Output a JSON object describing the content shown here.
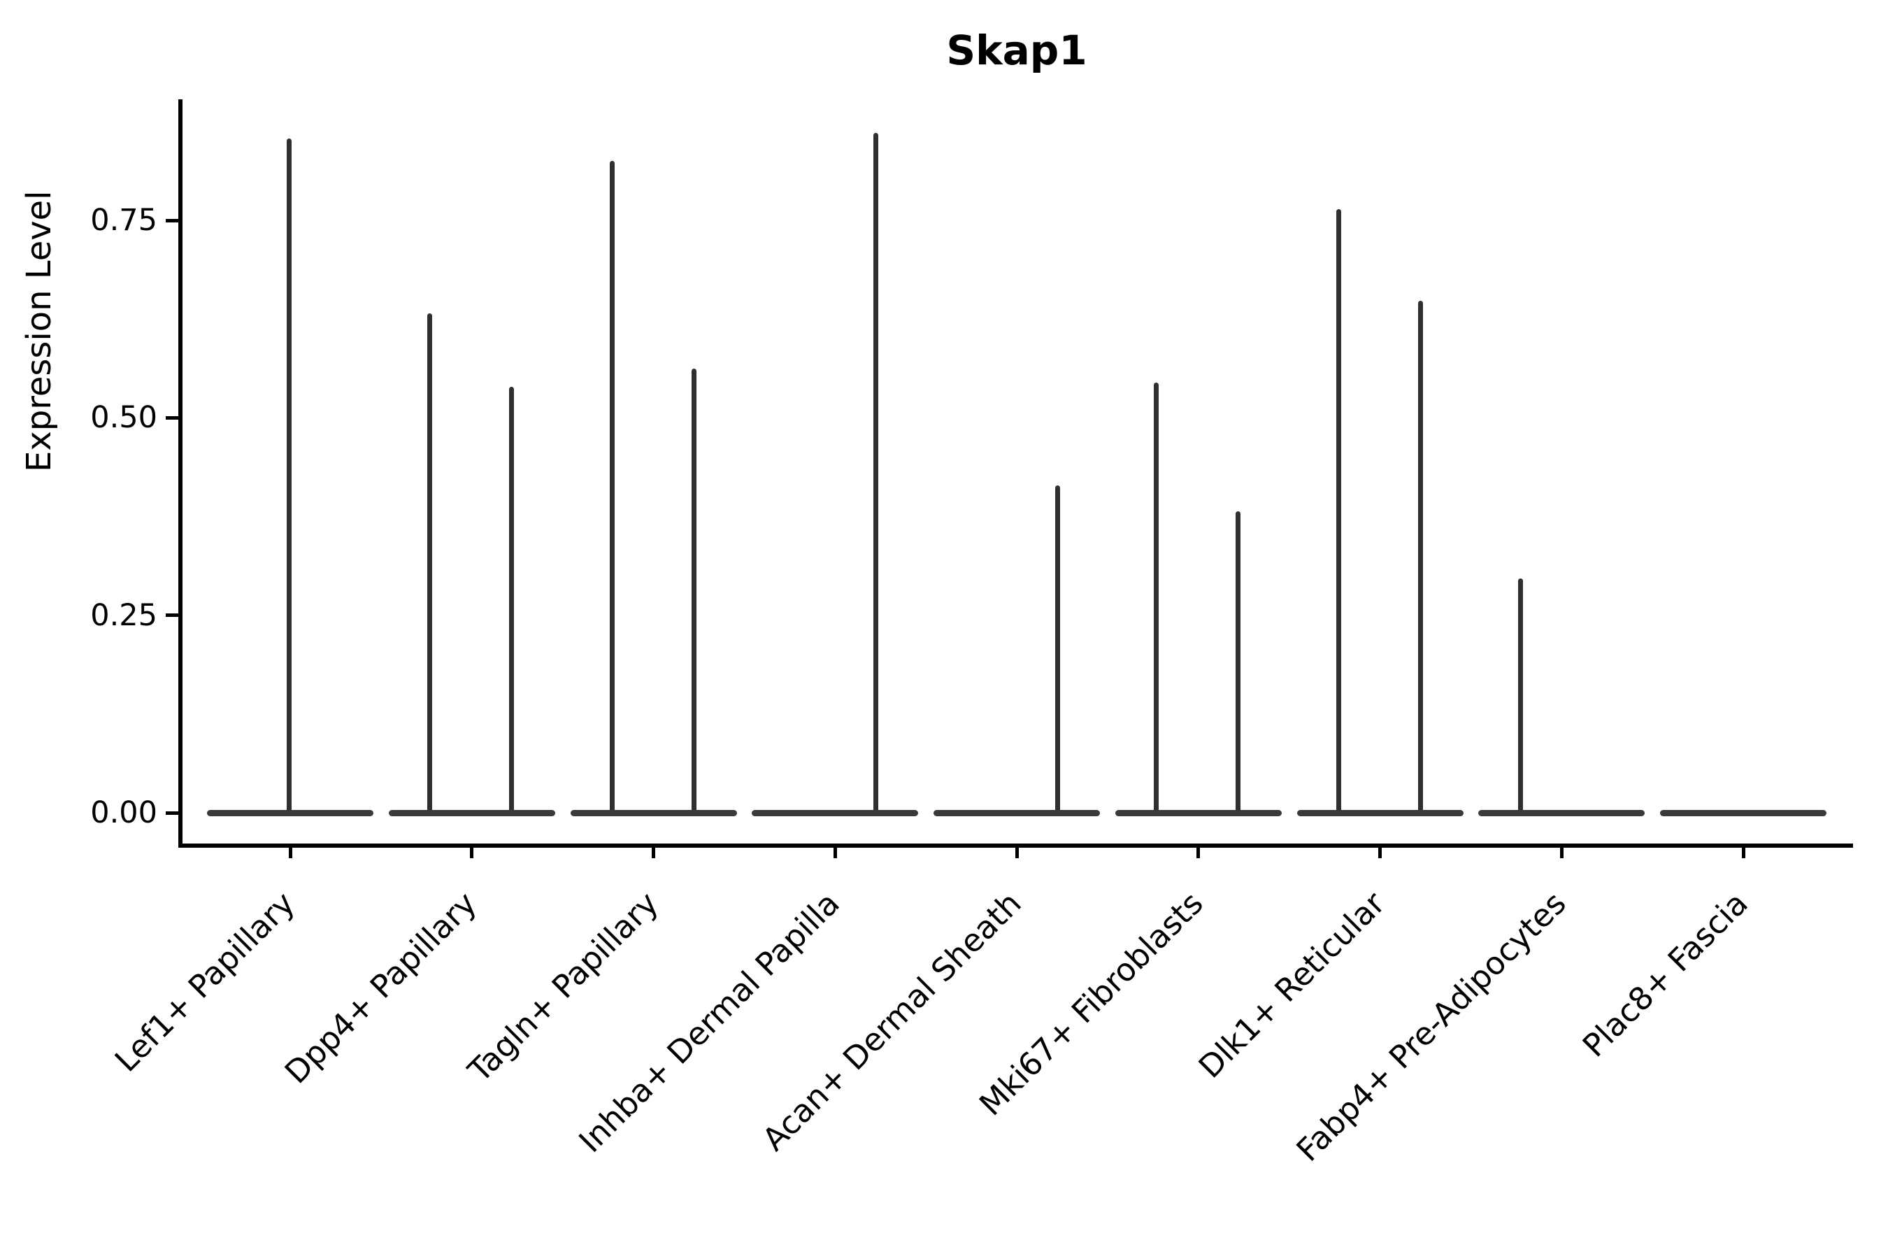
{
  "chart_data": {
    "type": "violin",
    "title": "Skap1",
    "ylabel": "Expression Level",
    "xlabel": "",
    "grid": false,
    "legend": "none",
    "ylim": [
      -0.042,
      0.903
    ],
    "yticks": [
      0.0,
      0.25,
      0.5,
      0.75
    ],
    "ytick_labels": [
      "0.00",
      "0.25",
      "0.50",
      "0.75"
    ],
    "categories": [
      "Lef1+ Papillary",
      "Dpp4+ Papillary",
      "Tagln+ Papillary",
      "Inhba+ Dermal Papilla",
      "Acan+ Dermal Sheath",
      "Mki67+ Fibroblasts",
      "Dlk1+ Reticular",
      "Fabp4+ Pre-Adipocytes",
      "Plac8+ Fascia"
    ],
    "series": [
      {
        "name": "Lef1+ Papillary",
        "base_value": 0.0,
        "spikes": [
          {
            "dx": -2,
            "max": 0.854
          }
        ]
      },
      {
        "name": "Dpp4+ Papillary",
        "base_value": 0.0,
        "spikes": [
          {
            "dx": -60,
            "max": 0.632
          },
          {
            "dx": 57,
            "max": 0.539
          }
        ]
      },
      {
        "name": "Tagln+ Papillary",
        "base_value": 0.0,
        "spikes": [
          {
            "dx": -59,
            "max": 0.825
          },
          {
            "dx": 58,
            "max": 0.562
          }
        ]
      },
      {
        "name": "Inhba+ Dermal Papilla",
        "base_value": 0.0,
        "spikes": [
          {
            "dx": 58,
            "max": 0.861
          }
        ]
      },
      {
        "name": "Acan+ Dermal Sheath",
        "base_value": 0.0,
        "spikes": [
          {
            "dx": 58,
            "max": 0.414
          }
        ]
      },
      {
        "name": "Mki67+ Fibroblasts",
        "base_value": 0.0,
        "spikes": [
          {
            "dx": -60,
            "max": 0.545
          },
          {
            "dx": 57,
            "max": 0.382
          }
        ]
      },
      {
        "name": "Dlk1+ Reticular",
        "base_value": 0.0,
        "spikes": [
          {
            "dx": -59,
            "max": 0.764
          },
          {
            "dx": 58,
            "max": 0.648
          }
        ]
      },
      {
        "name": "Fabp4+ Pre-Adipocytes",
        "base_value": 0.0,
        "spikes": [
          {
            "dx": -59,
            "max": 0.297
          }
        ]
      },
      {
        "name": "Plac8+ Fascia",
        "base_value": 0.0,
        "spikes": []
      }
    ],
    "colors": {
      "violin_stroke": "#2f2f2f",
      "violin_base": "#3a3a3a",
      "axis": "#000000",
      "background": "#ffffff"
    }
  }
}
